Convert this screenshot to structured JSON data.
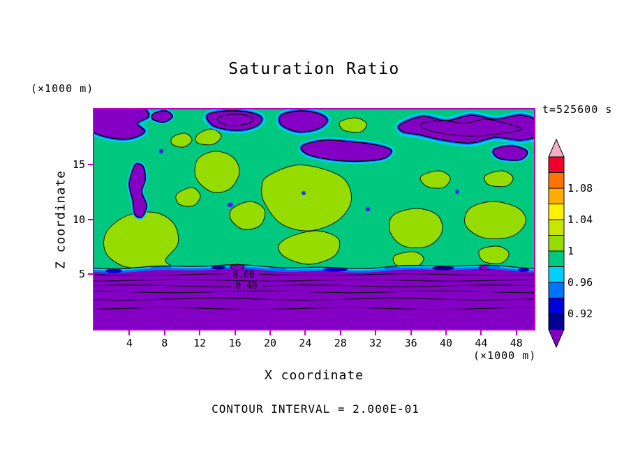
{
  "chart_data": {
    "type": "heatmap",
    "subtype": "filled_contour_with_line_contours",
    "title": "Saturation Ratio",
    "xlabel": "X coordinate",
    "ylabel": "Z coordinate",
    "x_unit": "(×1000 m)",
    "y_unit": "(×1000 m)",
    "xlim": [
      0,
      50
    ],
    "ylim": [
      0,
      20
    ],
    "x_ticks": [
      4,
      8,
      12,
      16,
      20,
      24,
      28,
      32,
      36,
      40,
      44,
      48
    ],
    "y_ticks": [
      5,
      10,
      15
    ],
    "grid": false,
    "time_annotation": "t=525600 s",
    "contour_interval_annotation": "CONTOUR INTERVAL = 2.000E-01",
    "line_contour_interval": 0.2,
    "line_contour_labels": [
      "0.80",
      "0.40"
    ],
    "colorbar": {
      "position": "right",
      "tick_labels": [
        "1.08",
        "1.04",
        "1",
        "0.96",
        "0.92"
      ],
      "level_step": 0.02,
      "arrow_ends": true,
      "colors_top_to_bottom": [
        "#F4AEC2",
        "#F2002C",
        "#FF7300",
        "#FFAD00",
        "#FFF000",
        "#C8E600",
        "#96DC00",
        "#00C87E",
        "#00CFFF",
        "#0073FF",
        "#0000DC",
        "#000096",
        "#8400C4"
      ]
    },
    "field_summary": [
      "Below z≈5 (×1000 m): strongly subsaturated dry layer (purple) with horizontal line contours labelled 0.80 and 0.40 (contour interval 0.2).",
      "z≈5–19: near-saturated air (saturation ratio ≈0.98–1.00, green) with scattered slightly supersaturated patches (≈1.00–1.04, yellow-green).",
      "Along the top (z≈17–20): subsaturated pockets (<0.92, purple) rimmed by cyan/blue fringes (0.92–0.98)."
    ]
  },
  "frame_color": "#C000C0"
}
